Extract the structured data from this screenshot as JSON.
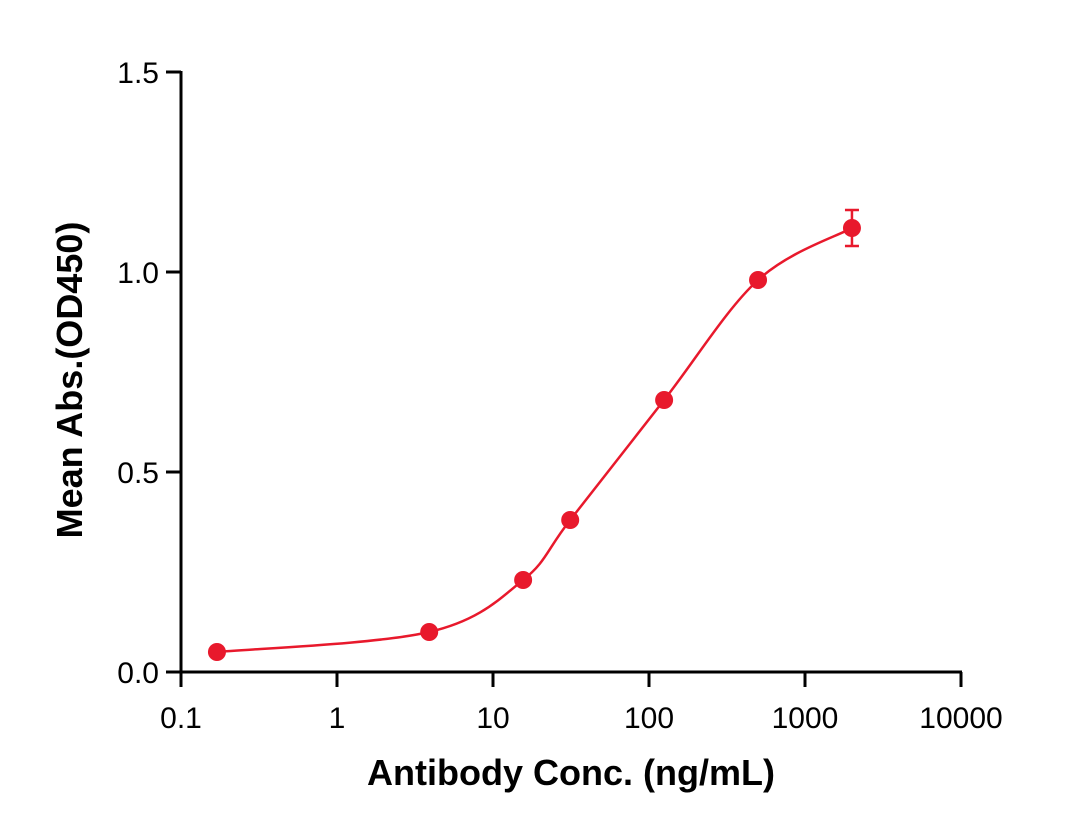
{
  "chart_data": {
    "type": "scatter",
    "x_label": "Antibody Conc. (ng/mL)",
    "y_label": "Mean Abs.(OD450)",
    "x_scale": "log",
    "xlim": [
      0.1,
      10000
    ],
    "xticks": [
      0.1,
      1,
      10,
      100,
      1000,
      10000
    ],
    "ylim": [
      0,
      1.5
    ],
    "yticks": [
      {
        "value": 0,
        "label": "0.0"
      },
      {
        "value": 0.5,
        "label": "0.5"
      },
      {
        "value": 1,
        "label": "1.0"
      },
      {
        "value": 1.5,
        "label": "1.5"
      }
    ],
    "fit_curve": true,
    "series": [
      {
        "color": "#e8192c",
        "x": [
          0.17,
          3.9,
          15.6,
          31.25,
          125,
          500,
          2000
        ],
        "values": [
          0.05,
          0.1,
          0.23,
          0.38,
          0.68,
          0.98,
          1.11
        ],
        "errors": [
          null,
          null,
          null,
          null,
          null,
          null,
          0.045
        ]
      }
    ]
  }
}
